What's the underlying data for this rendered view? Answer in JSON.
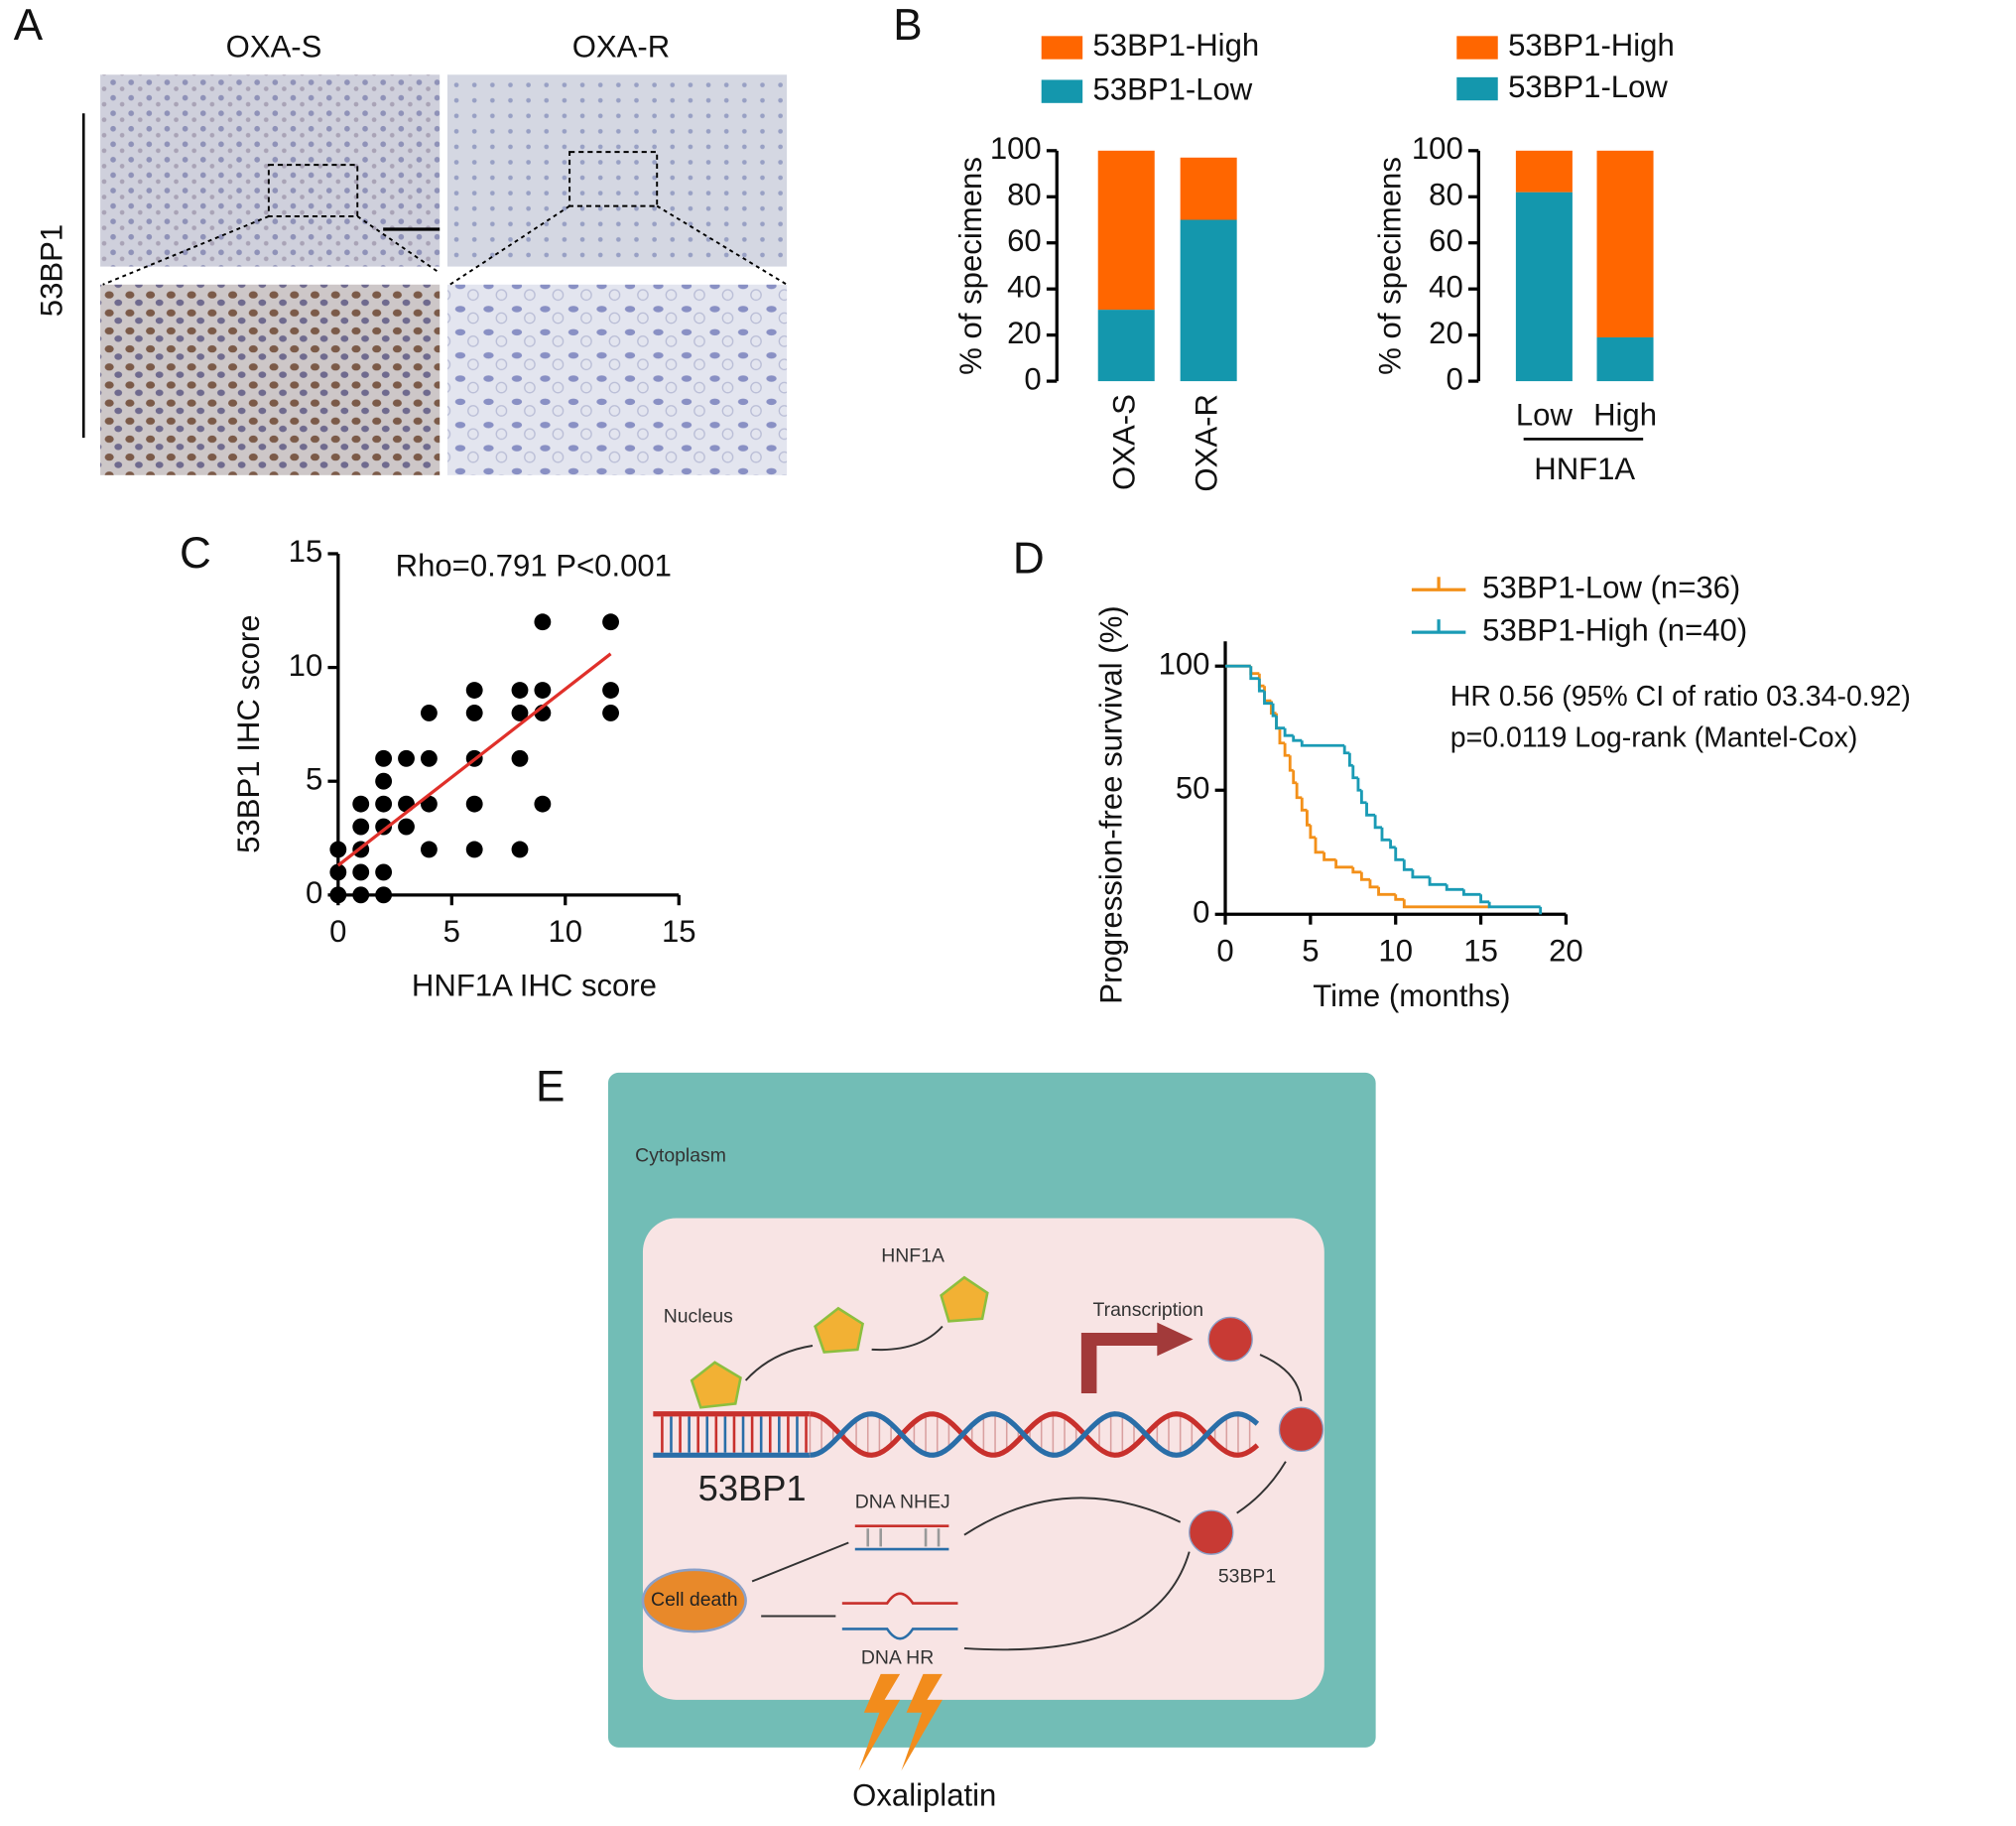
{
  "panel_labels": [
    "A",
    "B",
    "C",
    "D",
    "E"
  ],
  "panel_a": {
    "columns": [
      "OXA-S",
      "OXA-R"
    ],
    "row_label": "53BP1"
  },
  "chart_data": [
    {
      "type": "stacked_bar",
      "ylabel": "% of specimens",
      "categories": [
        "OXA-S",
        "OXA-R"
      ],
      "series": [
        {
          "name": "53BP1-Low",
          "color": "#1497ad",
          "values": [
            31,
            70
          ]
        },
        {
          "name": "53BP1-High",
          "color": "#ff6600",
          "values": [
            69,
            27
          ]
        }
      ],
      "ylim": [
        0,
        100
      ],
      "yticks": [
        0,
        20,
        40,
        60,
        80,
        100
      ]
    },
    {
      "type": "stacked_bar",
      "ylabel": "% of specimens",
      "xlabel": "HNF1A",
      "categories": [
        "Low",
        "High"
      ],
      "series": [
        {
          "name": "53BP1-Low",
          "color": "#1497ad",
          "values": [
            82,
            19
          ]
        },
        {
          "name": "53BP1-High",
          "color": "#ff6600",
          "values": [
            18,
            81
          ]
        }
      ],
      "ylim": [
        0,
        100
      ],
      "yticks": [
        0,
        20,
        40,
        60,
        80,
        100
      ]
    },
    {
      "type": "scatter",
      "xlabel": "HNF1A IHC score",
      "ylabel": "53BP1 IHC score",
      "annotation": "Rho=0.791 P<0.001",
      "color": "#000000",
      "x": [
        0,
        0,
        0,
        1,
        1,
        1,
        1,
        1,
        2,
        2,
        2,
        2,
        2,
        2,
        3,
        3,
        3,
        4,
        4,
        4,
        4,
        6,
        6,
        6,
        6,
        6,
        8,
        8,
        8,
        8,
        9,
        9,
        9,
        9,
        12,
        12,
        12
      ],
      "values": [
        0,
        1,
        2,
        0,
        1,
        2,
        3,
        4,
        0,
        1,
        3,
        4,
        5,
        6,
        3,
        4,
        6,
        2,
        4,
        6,
        8,
        2,
        4,
        6,
        8,
        9,
        2,
        6,
        8,
        9,
        4,
        8,
        9,
        12,
        8,
        9,
        12
      ],
      "fit": {
        "x": [
          0,
          12
        ],
        "values": [
          1.3,
          10.6
        ],
        "color": "#e0302a"
      },
      "xlim": [
        0,
        15
      ],
      "ylim": [
        0,
        15
      ],
      "xticks": [
        0,
        5,
        10,
        15
      ],
      "yticks": [
        0,
        5,
        10,
        15
      ]
    },
    {
      "type": "survival",
      "xlabel": "Time (months)",
      "ylabel": "Progression-free survival (%)",
      "annotations": [
        "HR 0.56 (95% CI of ratio 03.34-0.92)",
        "p=0.0119 Log-rank (Mantel-Cox)"
      ],
      "series": [
        {
          "name": "53BP1-Low (n=36)",
          "color": "#f39019",
          "x": [
            0,
            1.5,
            2,
            2.3,
            2.7,
            3,
            3.2,
            3.5,
            3.8,
            4,
            4.2,
            4.5,
            4.8,
            5,
            5.3,
            5.8,
            6.5,
            7.5,
            8,
            8.5,
            9,
            10,
            10.5,
            15.5
          ],
          "values": [
            100,
            97,
            92,
            86,
            81,
            75,
            69,
            64,
            58,
            53,
            47,
            42,
            36,
            31,
            25,
            22,
            19,
            17,
            14,
            11,
            8,
            6,
            3,
            3
          ]
        },
        {
          "name": "53BP1-High (n=40)",
          "color": "#1a9bb5",
          "x": [
            0,
            1.5,
            2,
            2.3,
            2.8,
            3,
            3.5,
            4,
            4.5,
            7,
            7.3,
            7.5,
            7.8,
            8,
            8.3,
            8.8,
            9.2,
            9.7,
            10,
            10.5,
            11,
            12,
            13,
            14,
            15,
            15.5,
            18.5
          ],
          "values": [
            100,
            95,
            90,
            85,
            80,
            75,
            72,
            70,
            68,
            65,
            60,
            55,
            50,
            45,
            40,
            35,
            30,
            27,
            22,
            18,
            15,
            12,
            10,
            8,
            5,
            3,
            0
          ]
        }
      ],
      "xlim": [
        0,
        20
      ],
      "ylim": [
        0,
        110
      ],
      "xticks": [
        0,
        5,
        10,
        15,
        20
      ],
      "yticks": [
        0,
        50,
        100
      ]
    }
  ],
  "diagram": {
    "cytoplasm": "Cytoplasm",
    "nucleus": "Nucleus",
    "hnf1a": "HNF1A",
    "transcription": "Transcription",
    "gene": "53BP1",
    "protein": "53BP1",
    "nhej": "DNA NHEJ",
    "hr": "DNA HR",
    "cell_death": "Cell death",
    "drug": "Oxaliplatin"
  }
}
